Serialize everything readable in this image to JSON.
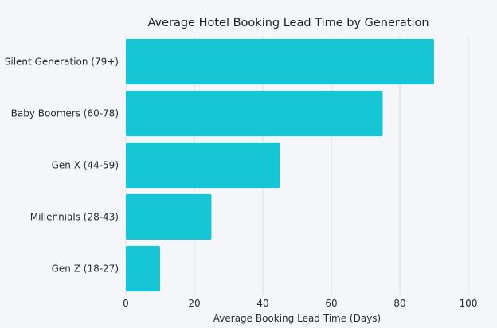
{
  "chart_data": {
    "type": "bar",
    "orientation": "horizontal",
    "title": "Average Hotel Booking Lead Time by Generation",
    "xlabel": "Average Booking Lead Time (Days)",
    "ylabel": "",
    "categories": [
      "Silent Generation (79+)",
      "Baby Boomers (60-78)",
      "Gen X (44-59)",
      "Millennials (28-43)",
      "Gen Z (18-27)"
    ],
    "values": [
      90,
      75,
      45,
      25,
      10
    ],
    "xlim": [
      0,
      100
    ],
    "xticks": [
      0,
      20,
      40,
      60,
      80,
      100
    ],
    "grid": "vertical",
    "legend": "none",
    "colors": {
      "bar": "#17c6d4",
      "background": "#f5f6fa",
      "grid": "#dcdde3"
    }
  }
}
